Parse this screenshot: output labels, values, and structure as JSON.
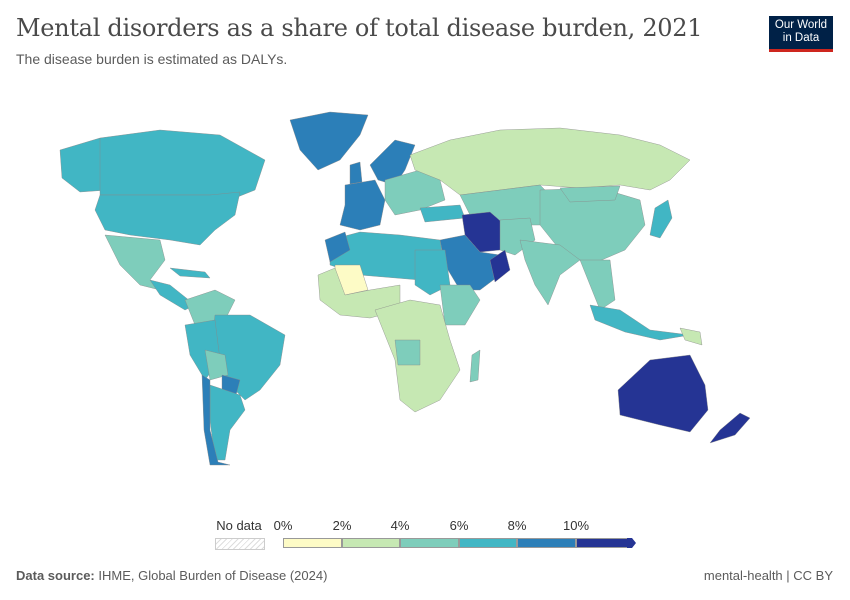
{
  "header": {
    "title": "Mental disorders as a share of total disease burden, 2021",
    "subtitle": "The disease burden is estimated as DALYs.",
    "logo_line1": "Our World",
    "logo_line2": "in Data"
  },
  "legend": {
    "no_data": "No data",
    "ticks": [
      "0%",
      "2%",
      "4%",
      "6%",
      "8%",
      "10%"
    ],
    "colors": [
      "#fdfbc6",
      "#c6e8b3",
      "#7ecdbb",
      "#41b6c4",
      "#2c7fb8",
      "#253494"
    ],
    "no_data_color": "#e8e8e8"
  },
  "footer": {
    "source_label": "Data source:",
    "source": "IHME, Global Burden of Disease (2024)",
    "license": "mental-health | CC BY"
  }
}
